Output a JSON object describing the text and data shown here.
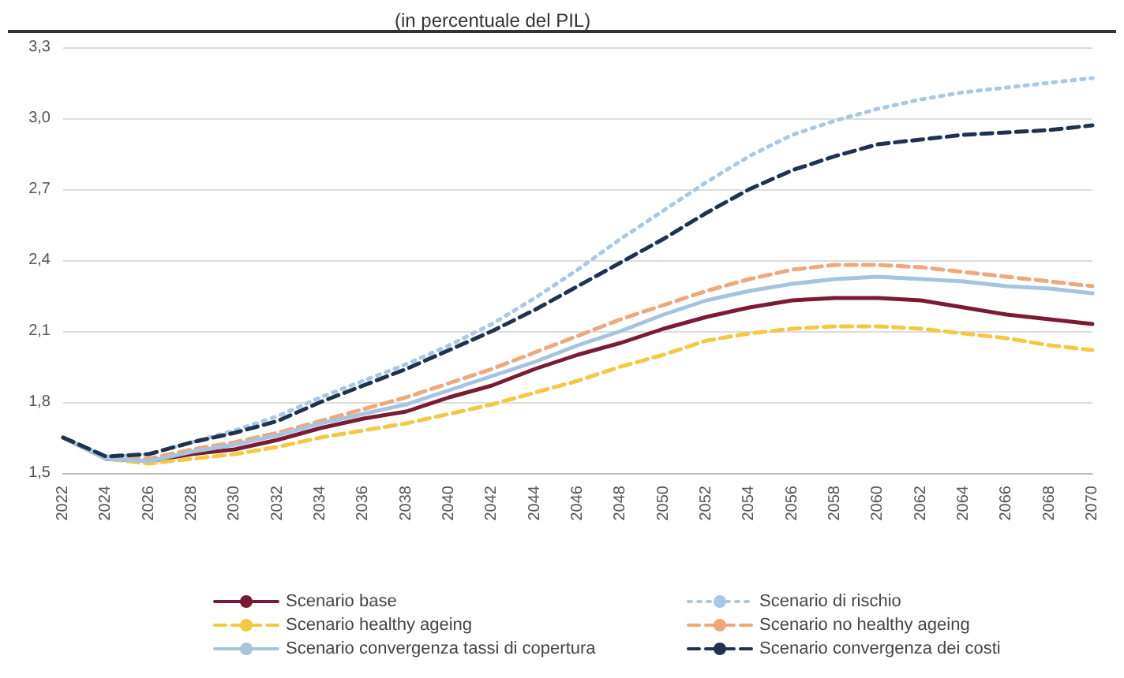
{
  "chart_data": {
    "type": "line",
    "title": "(in percentuale del PIL)",
    "categories": [
      "2022",
      "2024",
      "2026",
      "2028",
      "2030",
      "2032",
      "2034",
      "2036",
      "2038",
      "2040",
      "2042",
      "2044",
      "2046",
      "2048",
      "2050",
      "2052",
      "2054",
      "2056",
      "2058",
      "2060",
      "2062",
      "2064",
      "2066",
      "2068",
      "2070"
    ],
    "series": [
      {
        "name": "Scenario base",
        "color": "#7b1a33",
        "line_style": "solid",
        "values": [
          1.65,
          1.56,
          1.55,
          1.58,
          1.6,
          1.64,
          1.69,
          1.73,
          1.76,
          1.82,
          1.87,
          1.94,
          2.0,
          2.05,
          2.11,
          2.16,
          2.2,
          2.23,
          2.24,
          2.24,
          2.23,
          2.2,
          2.17,
          2.15,
          2.13
        ]
      },
      {
        "name": "Scenario di rischio",
        "color": "#a9c8e6",
        "line_style": "dotted",
        "values": [
          1.65,
          1.57,
          1.58,
          1.63,
          1.68,
          1.74,
          1.82,
          1.89,
          1.96,
          2.04,
          2.13,
          2.24,
          2.36,
          2.49,
          2.61,
          2.73,
          2.84,
          2.93,
          2.99,
          3.04,
          3.08,
          3.11,
          3.13,
          3.15,
          3.17
        ]
      },
      {
        "name": "Scenario healthy ageing",
        "color": "#f5c842",
        "line_style": "dashed",
        "values": [
          1.65,
          1.56,
          1.54,
          1.56,
          1.58,
          1.61,
          1.65,
          1.68,
          1.71,
          1.75,
          1.79,
          1.84,
          1.89,
          1.95,
          2.0,
          2.06,
          2.09,
          2.11,
          2.12,
          2.12,
          2.11,
          2.09,
          2.07,
          2.04,
          2.02
        ]
      },
      {
        "name": "Scenario no healthy ageing",
        "color": "#f0a77a",
        "line_style": "dashed",
        "values": [
          1.65,
          1.56,
          1.56,
          1.6,
          1.63,
          1.67,
          1.72,
          1.77,
          1.82,
          1.88,
          1.94,
          2.01,
          2.08,
          2.15,
          2.21,
          2.27,
          2.32,
          2.36,
          2.38,
          2.38,
          2.37,
          2.35,
          2.33,
          2.31,
          2.29
        ]
      },
      {
        "name": "Scenario convergenza tassi di copertura",
        "color": "#a6c4e0",
        "line_style": "solid",
        "values": [
          1.65,
          1.56,
          1.55,
          1.59,
          1.62,
          1.66,
          1.71,
          1.75,
          1.79,
          1.85,
          1.91,
          1.97,
          2.04,
          2.1,
          2.17,
          2.23,
          2.27,
          2.3,
          2.32,
          2.33,
          2.32,
          2.31,
          2.29,
          2.28,
          2.26
        ]
      },
      {
        "name": "Scenario convergenza dei costi",
        "color": "#1f3350",
        "line_style": "dashed",
        "values": [
          1.65,
          1.57,
          1.58,
          1.63,
          1.67,
          1.72,
          1.8,
          1.87,
          1.94,
          2.02,
          2.1,
          2.19,
          2.29,
          2.39,
          2.49,
          2.6,
          2.7,
          2.78,
          2.84,
          2.89,
          2.91,
          2.93,
          2.94,
          2.95,
          2.97
        ]
      }
    ],
    "ylim": [
      1.5,
      3.3
    ],
    "yticks": [
      {
        "value": 1.5,
        "label": "1,5"
      },
      {
        "value": 1.8,
        "label": "1,8"
      },
      {
        "value": 2.1,
        "label": "2,1"
      },
      {
        "value": 2.4,
        "label": "2,4"
      },
      {
        "value": 2.7,
        "label": "2,7"
      },
      {
        "value": 3.0,
        "label": "3,0"
      },
      {
        "value": 3.3,
        "label": "3,3"
      }
    ],
    "grid": "y",
    "legend": "bottom",
    "marker": "none"
  }
}
